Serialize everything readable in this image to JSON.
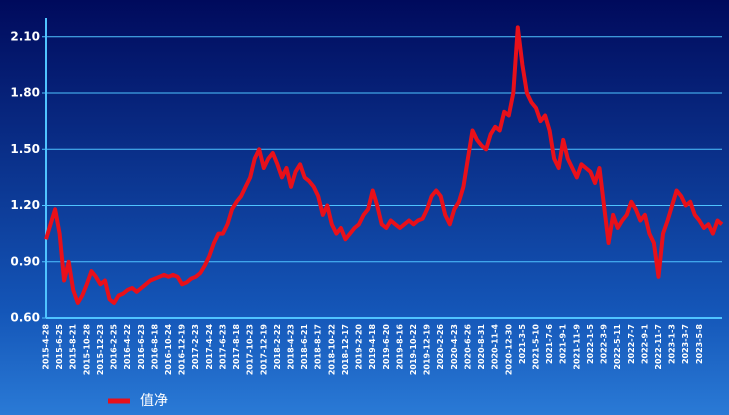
{
  "chart_data": {
    "type": "line",
    "categories": [
      "2015-4-28",
      null,
      null,
      "2015-6-25",
      null,
      null,
      "2015-8-21",
      null,
      null,
      "2015-10-28",
      null,
      null,
      "2015-12-23",
      null,
      null,
      "2016-2-25",
      null,
      null,
      "2016-4-22",
      null,
      null,
      "2016-6-23",
      null,
      null,
      "2016-8-18",
      null,
      null,
      "2016-10-24",
      null,
      null,
      "2016-12-19",
      null,
      null,
      "2017-2-23",
      null,
      null,
      "2017-4-24",
      null,
      null,
      "2017-6-23",
      null,
      null,
      "2017-8-18",
      null,
      null,
      "2017-10-23",
      null,
      null,
      "2017-12-19",
      null,
      null,
      "2018-2-22",
      null,
      null,
      "2018-4-23",
      null,
      null,
      "2018-6-21",
      null,
      null,
      "2018-8-17",
      null,
      null,
      "2018-10-22",
      null,
      null,
      "2018-12-17",
      null,
      null,
      "2019-2-20",
      null,
      null,
      "2019-4-18",
      null,
      null,
      "2019-6-20",
      null,
      null,
      "2019-8-16",
      null,
      null,
      "2019-10-22",
      null,
      null,
      "2019-12-19",
      null,
      null,
      "2020-2-26",
      null,
      null,
      "2020-4-23",
      null,
      null,
      "2020-6-26",
      null,
      null,
      "2020-8-31",
      null,
      null,
      "2020-11-4",
      null,
      null,
      "2020-12-30",
      null,
      null,
      "2021-3-5",
      null,
      null,
      "2021-5-10",
      null,
      null,
      "2021-7-6",
      null,
      null,
      "2021-9-1",
      null,
      null,
      "2021-11-9",
      null,
      null,
      "2022-1-5",
      null,
      null,
      "2022-3-9",
      null,
      null,
      "2022-5-11",
      null,
      null,
      "2022-7-7",
      null,
      null,
      "2022-9-1",
      null,
      null,
      "2022-11-7",
      null,
      null,
      "2023-1-3",
      null,
      null,
      "2023-3-7",
      null,
      null,
      "2023-5-8",
      null,
      null,
      null,
      null,
      null
    ],
    "series": [
      {
        "name": "值净",
        "color": "#e8101a",
        "values": [
          1.02,
          1.1,
          1.18,
          1.05,
          0.8,
          0.9,
          0.75,
          0.68,
          0.72,
          0.78,
          0.85,
          0.82,
          0.78,
          0.8,
          0.7,
          0.68,
          0.72,
          0.73,
          0.75,
          0.76,
          0.74,
          0.76,
          0.78,
          0.8,
          0.81,
          0.82,
          0.83,
          0.82,
          0.83,
          0.82,
          0.78,
          0.79,
          0.81,
          0.82,
          0.84,
          0.88,
          0.93,
          1.0,
          1.05,
          1.05,
          1.1,
          1.18,
          1.22,
          1.25,
          1.3,
          1.35,
          1.45,
          1.5,
          1.4,
          1.45,
          1.48,
          1.42,
          1.35,
          1.4,
          1.3,
          1.38,
          1.42,
          1.35,
          1.33,
          1.3,
          1.25,
          1.15,
          1.2,
          1.1,
          1.05,
          1.08,
          1.02,
          1.05,
          1.08,
          1.1,
          1.15,
          1.18,
          1.28,
          1.2,
          1.1,
          1.08,
          1.12,
          1.1,
          1.08,
          1.1,
          1.12,
          1.1,
          1.12,
          1.13,
          1.18,
          1.25,
          1.28,
          1.25,
          1.15,
          1.1,
          1.18,
          1.22,
          1.3,
          1.45,
          1.6,
          1.55,
          1.52,
          1.5,
          1.58,
          1.62,
          1.6,
          1.7,
          1.68,
          1.8,
          2.15,
          1.95,
          1.8,
          1.75,
          1.72,
          1.65,
          1.68,
          1.6,
          1.45,
          1.4,
          1.55,
          1.45,
          1.4,
          1.35,
          1.42,
          1.4,
          1.38,
          1.32,
          1.4,
          1.2,
          1.0,
          1.15,
          1.08,
          1.12,
          1.15,
          1.22,
          1.18,
          1.12,
          1.15,
          1.05,
          1.0,
          0.82,
          1.05,
          1.12,
          1.2,
          1.28,
          1.25,
          1.2,
          1.22,
          1.15,
          1.12,
          1.08,
          1.1,
          1.05,
          1.12,
          1.1
        ]
      }
    ],
    "ylim": [
      0.6,
      2.2
    ],
    "yticks": [
      {
        "value": 0.6,
        "label": "0.60"
      },
      {
        "value": 0.9,
        "label": "0.90"
      },
      {
        "value": 1.2,
        "label": "1.20"
      },
      {
        "value": 1.5,
        "label": "1.50"
      },
      {
        "value": 1.8,
        "label": "1.80"
      },
      {
        "value": 2.1,
        "label": "2.10"
      }
    ],
    "grid": true
  }
}
